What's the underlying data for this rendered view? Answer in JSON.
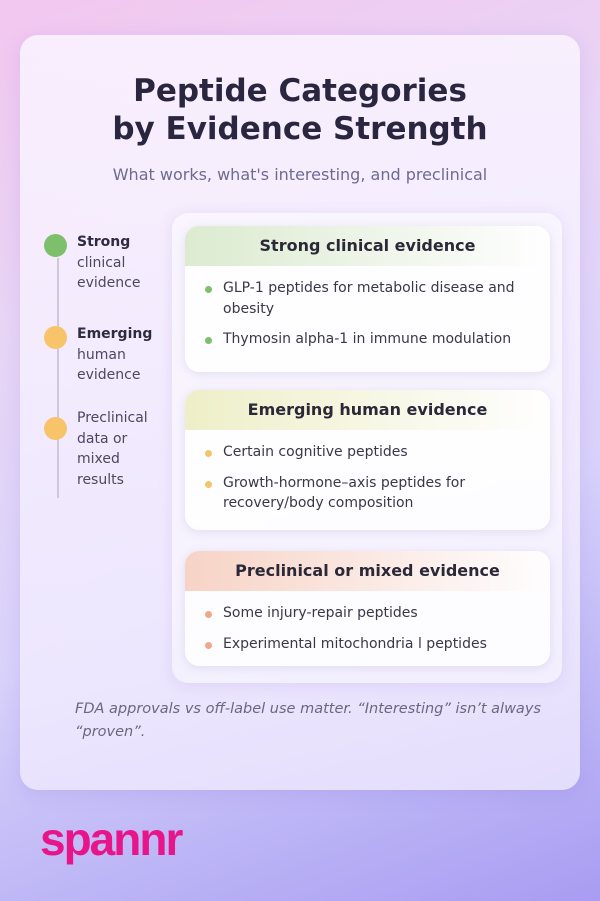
{
  "title": {
    "line1": "Peptide Categories",
    "line2": "by Evidence Strength"
  },
  "subtitle": "What works, what's interesting, and preclinical",
  "timeline": [
    {
      "bold": "Strong",
      "rest": "clinical evidence",
      "color": "#7dbf6a"
    },
    {
      "bold": "Emerging",
      "rest": "human evidence",
      "color": "#f7c46a"
    },
    {
      "bold": "",
      "rest": "Preclinical data or mixed results",
      "color": "#f7c46a"
    }
  ],
  "sections": [
    {
      "title": "Strong clinical evidence",
      "header_color": "#dcebd0",
      "bullet_color": "#7dbf6a",
      "items": [
        "GLP-1 peptides for metabolic disease and obesity",
        "Thymosin alpha-1 in immune modulation"
      ]
    },
    {
      "title": "Emerging human evidence",
      "header_color": "#eeefc8",
      "bullet_color": "#f2c46b",
      "items": [
        "Certain cognitive peptides",
        "Growth-hormone–axis peptides for recovery/body composition"
      ]
    },
    {
      "title": "Preclinical or mixed evidence",
      "header_color": "#f7d3c6",
      "bullet_color": "#eea88a",
      "items": [
        "Some injury-repair peptides",
        "Experimental mitochondria l peptides"
      ]
    }
  ],
  "footer": "FDA approvals vs off-label use matter. “Interesting” isn’t always “proven”.",
  "logo": "spannr",
  "brand_color": "#e8158a"
}
